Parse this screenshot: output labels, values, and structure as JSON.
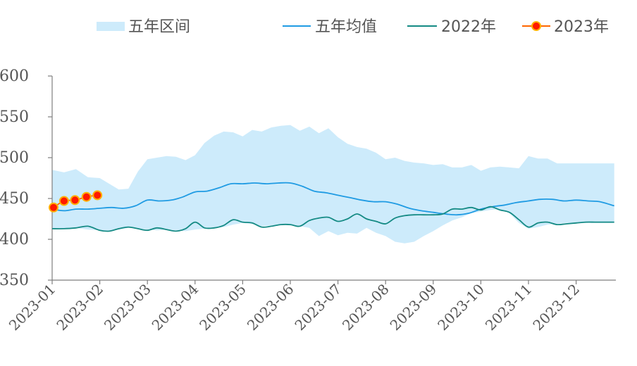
{
  "chart_data": {
    "type": "line",
    "ylim": [
      350,
      600
    ],
    "yticks": [
      350,
      400,
      450,
      500,
      550,
      600
    ],
    "x_tick_labels": [
      "2023-01",
      "2023-02",
      "2023-03",
      "2023-04",
      "2023-05",
      "2023-06",
      "2023-07",
      "2023-08",
      "2023-09",
      "2023-10",
      "2023-11",
      "2023-12"
    ],
    "grid": false,
    "legend_position": "top",
    "colors": {
      "band": "#cdebfb",
      "mean": "#1f9be3",
      "y2022": "#148a84",
      "y2023_line": "#ff6600",
      "y2023_marker": "#ff1a00"
    },
    "band": {
      "name": "五年区间",
      "x": [
        1.0,
        1.25,
        1.5,
        1.75,
        2.0,
        2.2,
        2.4,
        2.6,
        2.8,
        3.0,
        3.2,
        3.4,
        3.6,
        3.8,
        4.0,
        4.2,
        4.4,
        4.6,
        4.8,
        5.0,
        5.2,
        5.4,
        5.6,
        5.8,
        6.0,
        6.2,
        6.4,
        6.6,
        6.8,
        7.0,
        7.2,
        7.4,
        7.6,
        7.8,
        8.0,
        8.2,
        8.4,
        8.6,
        8.8,
        9.0,
        9.2,
        9.4,
        9.6,
        9.8,
        10.0,
        10.2,
        10.4,
        10.6,
        10.8,
        11.0,
        11.2,
        11.4,
        11.6,
        11.8,
        12.0,
        12.2,
        12.4,
        12.6,
        12.8
      ],
      "upper": [
        485,
        482,
        486,
        476,
        475,
        468,
        461,
        462,
        483,
        498,
        500,
        502,
        501,
        497,
        503,
        518,
        527,
        532,
        531,
        526,
        534,
        532,
        537,
        539,
        540,
        533,
        538,
        530,
        536,
        525,
        517,
        513,
        511,
        506,
        498,
        500,
        496,
        494,
        493,
        491,
        492,
        488,
        488,
        491,
        484,
        488,
        489,
        488,
        487,
        502,
        499,
        499,
        493,
        493,
        493,
        493,
        493,
        493,
        493
      ],
      "lower": [
        413,
        413,
        414,
        412,
        411,
        410,
        412,
        414,
        413,
        412,
        411,
        412,
        411,
        410,
        412,
        413,
        414,
        415,
        418,
        420,
        419,
        416,
        417,
        418,
        417,
        416,
        414,
        404,
        410,
        405,
        408,
        407,
        414,
        408,
        404,
        397,
        395,
        397,
        404,
        410,
        417,
        423,
        427,
        432,
        434,
        436,
        437,
        432,
        420,
        413,
        415,
        418,
        419,
        420,
        420,
        420,
        420,
        420,
        420
      ]
    },
    "series": [
      {
        "name": "五年均值",
        "x": [
          1.0,
          1.25,
          1.5,
          1.75,
          2.0,
          2.25,
          2.5,
          2.75,
          3.0,
          3.25,
          3.5,
          3.75,
          4.0,
          4.25,
          4.5,
          4.75,
          5.0,
          5.25,
          5.5,
          5.75,
          6.0,
          6.25,
          6.5,
          6.75,
          7.0,
          7.25,
          7.5,
          7.75,
          8.0,
          8.25,
          8.5,
          8.75,
          9.0,
          9.25,
          9.5,
          9.75,
          10.0,
          10.25,
          10.5,
          10.75,
          11.0,
          11.25,
          11.5,
          11.75,
          12.0,
          12.25,
          12.5,
          12.8
        ],
        "values": [
          437,
          435,
          437,
          437,
          438,
          439,
          438,
          441,
          448,
          447,
          448,
          452,
          458,
          459,
          463,
          468,
          468,
          469,
          468,
          469,
          469,
          465,
          459,
          457,
          454,
          451,
          448,
          446,
          446,
          443,
          438,
          435,
          433,
          431,
          430,
          432,
          437,
          440,
          442,
          445,
          447,
          449,
          449,
          447,
          448,
          447,
          446,
          441
        ]
      },
      {
        "name": "2022年",
        "x": [
          1.0,
          1.25,
          1.5,
          1.75,
          2.0,
          2.2,
          2.4,
          2.6,
          2.8,
          3.0,
          3.2,
          3.4,
          3.6,
          3.8,
          4.0,
          4.2,
          4.4,
          4.6,
          4.8,
          5.0,
          5.2,
          5.4,
          5.6,
          5.8,
          6.0,
          6.2,
          6.4,
          6.6,
          6.8,
          7.0,
          7.2,
          7.4,
          7.6,
          7.8,
          8.0,
          8.2,
          8.4,
          8.6,
          8.8,
          9.0,
          9.2,
          9.4,
          9.6,
          9.8,
          10.0,
          10.2,
          10.4,
          10.6,
          10.8,
          11.0,
          11.2,
          11.4,
          11.6,
          11.8,
          12.0,
          12.2,
          12.4,
          12.6,
          12.8
        ],
        "values": [
          413,
          413,
          414,
          416,
          411,
          410,
          413,
          415,
          413,
          411,
          414,
          412,
          410,
          413,
          421,
          414,
          414,
          417,
          424,
          421,
          420,
          415,
          416,
          418,
          418,
          416,
          423,
          426,
          427,
          422,
          425,
          431,
          425,
          422,
          419,
          426,
          429,
          430,
          430,
          430,
          431,
          437,
          437,
          439,
          436,
          440,
          436,
          433,
          424,
          415,
          420,
          421,
          418,
          419,
          420,
          421,
          421,
          421,
          421
        ]
      },
      {
        "name": "2023年",
        "x": [
          1.03,
          1.25,
          1.48,
          1.72,
          1.95
        ],
        "values": [
          439,
          447,
          448,
          452,
          454
        ]
      }
    ]
  }
}
